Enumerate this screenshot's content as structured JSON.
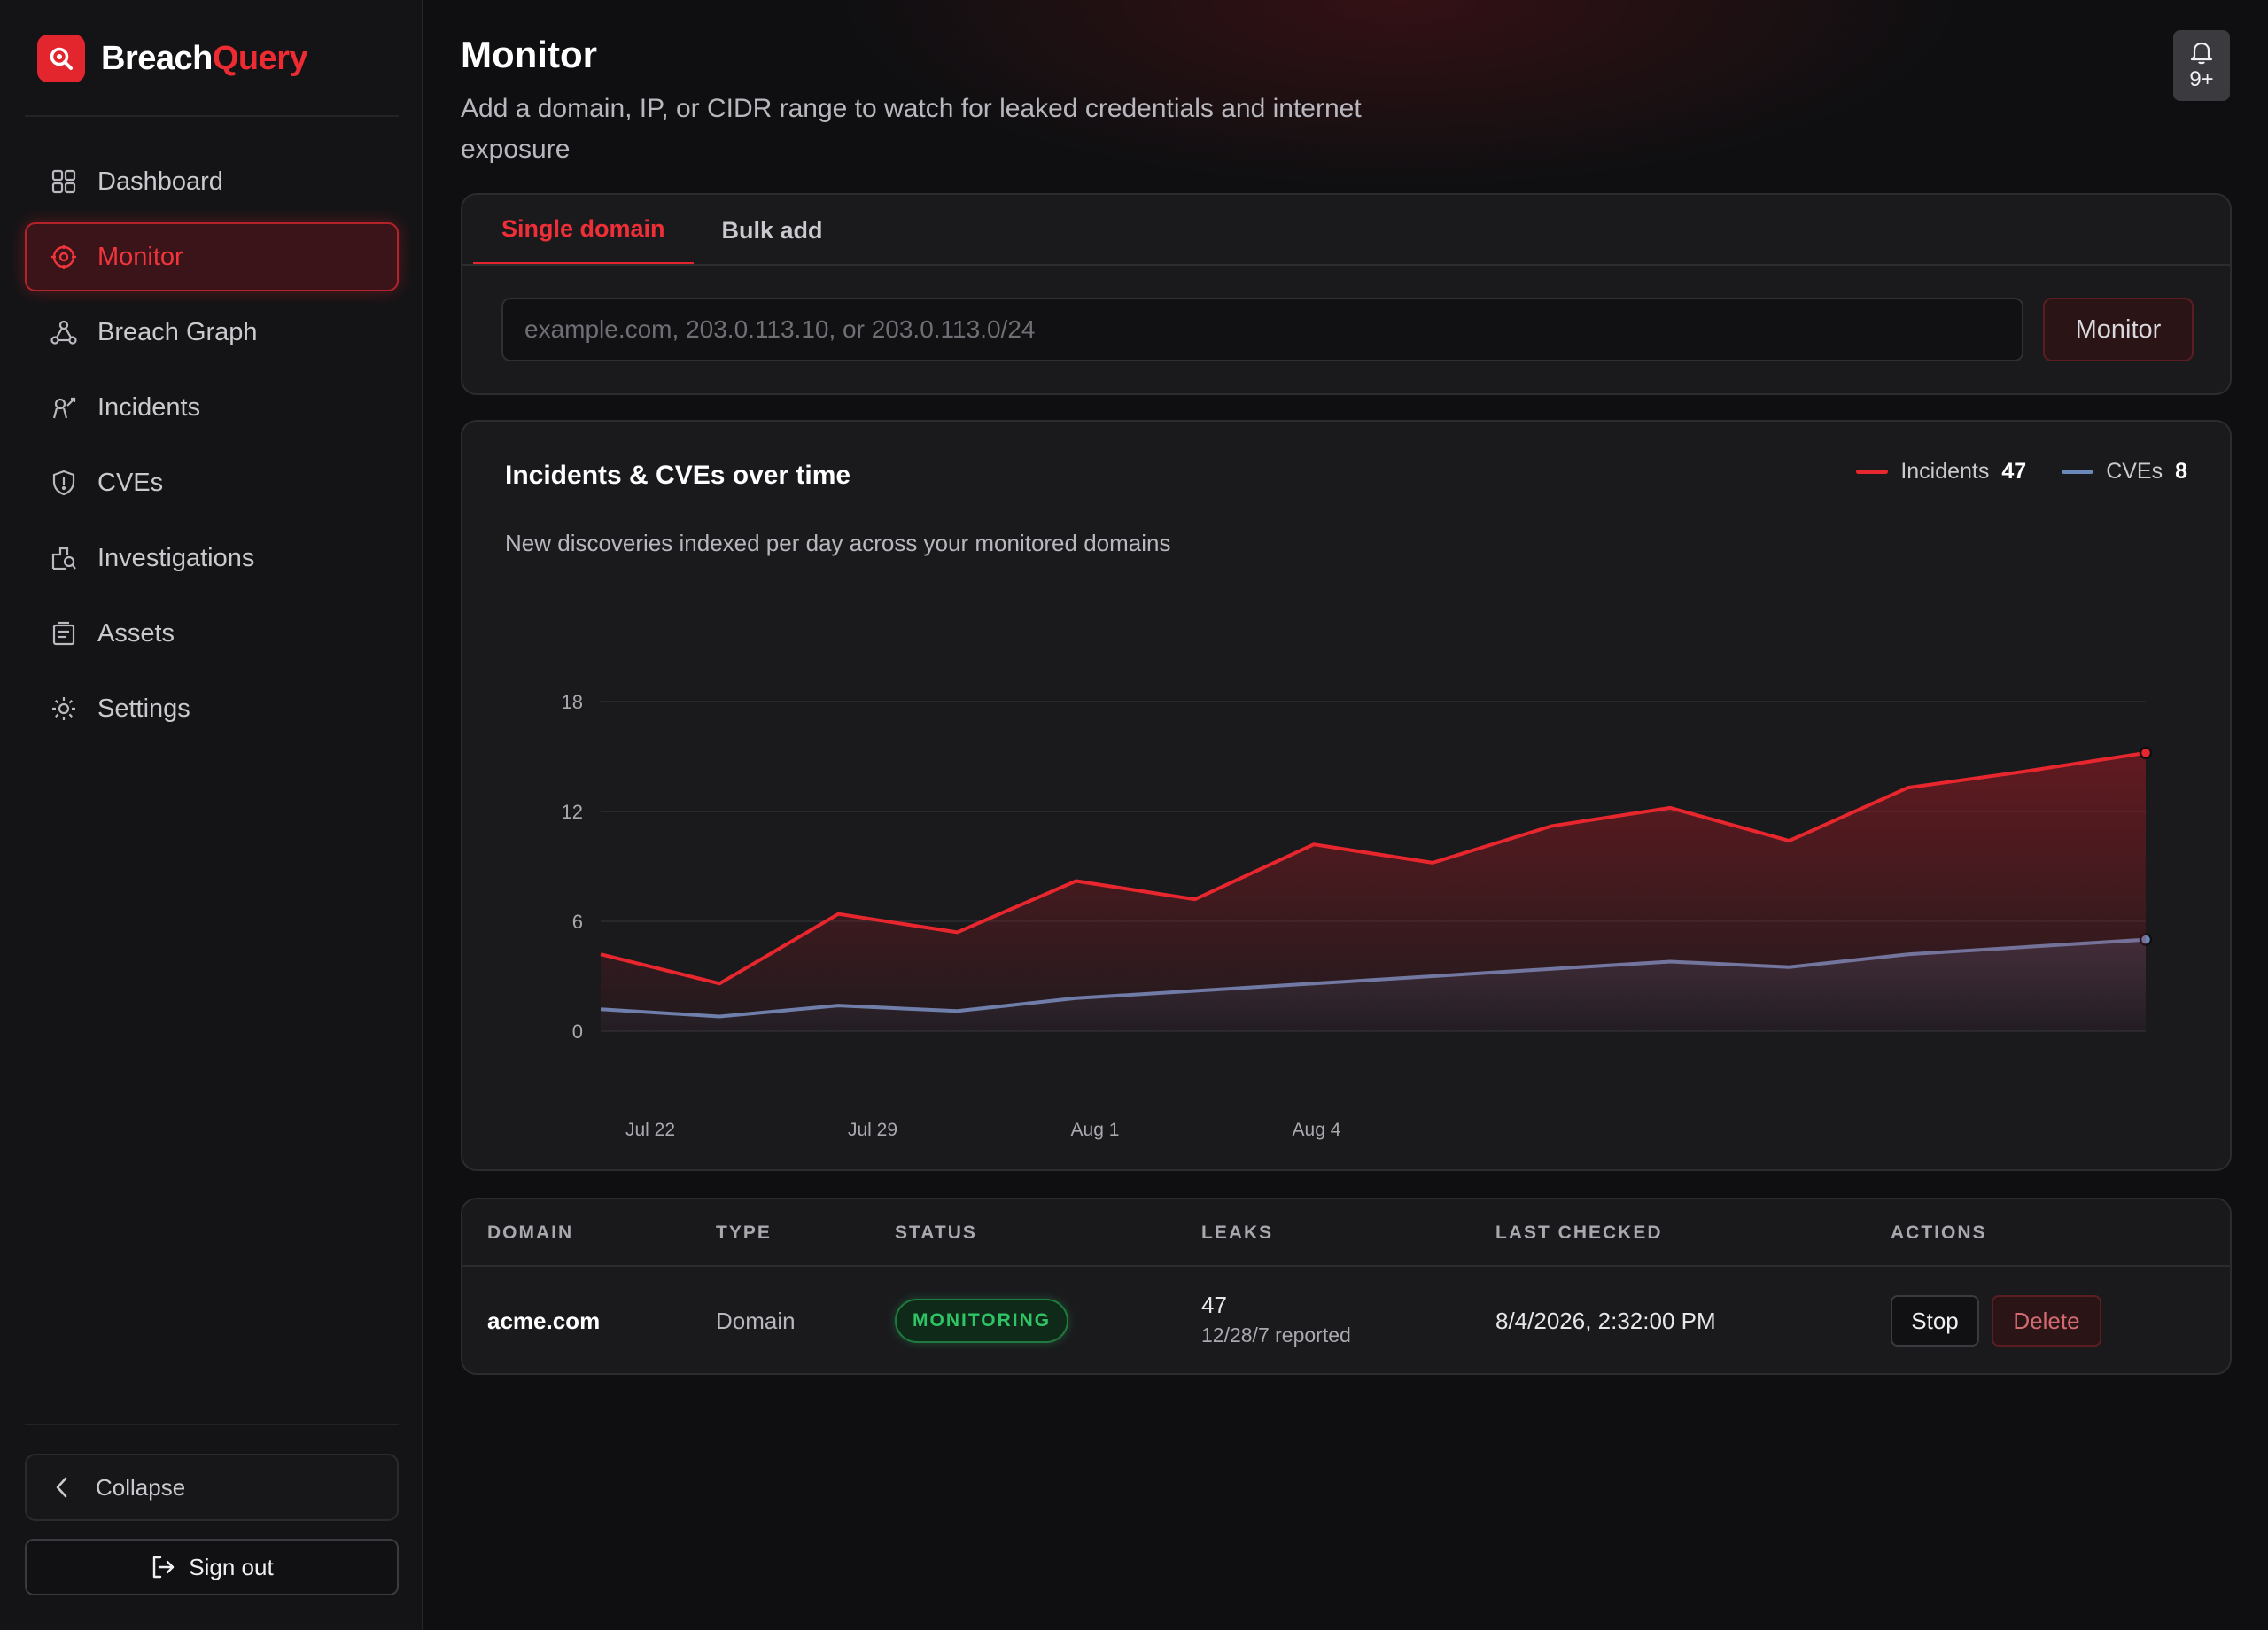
{
  "brand": {
    "part1": "Breach",
    "part2": "Query",
    "accent": "#e3262d"
  },
  "sidebar": {
    "items": [
      {
        "label": "Dashboard",
        "icon": "dashboard-icon",
        "active": false
      },
      {
        "label": "Monitor",
        "icon": "target-icon",
        "active": true
      },
      {
        "label": "Breach Graph",
        "icon": "graph-icon",
        "active": false
      },
      {
        "label": "Incidents",
        "icon": "incidents-icon",
        "active": false
      },
      {
        "label": "CVEs",
        "icon": "shield-icon",
        "active": false
      },
      {
        "label": "Investigations",
        "icon": "investigations-icon",
        "active": false
      },
      {
        "label": "Assets",
        "icon": "assets-icon",
        "active": false
      },
      {
        "label": "Settings",
        "icon": "settings-icon",
        "active": false
      }
    ],
    "collapse_label": "Collapse",
    "signout_label": "Sign out"
  },
  "header": {
    "title": "Monitor",
    "subtitle": "Add a domain, IP, or CIDR range to watch for leaked credentials and internet exposure",
    "notifications_count": "9+"
  },
  "add_form": {
    "tabs": [
      {
        "label": "Single domain",
        "active": true
      },
      {
        "label": "Bulk add",
        "active": false
      }
    ],
    "input_placeholder": "example.com, 203.0.113.10, or 203.0.113.0/24",
    "input_value": "",
    "submit_label": "Monitor"
  },
  "chart_data": {
    "type": "area",
    "title": "Incidents & CVEs over time",
    "subtitle": "New discoveries indexed per day across your monitored domains",
    "x_tick_labels": [
      "Jul 22",
      "Jul 29",
      "Aug 1",
      "Aug 4"
    ],
    "ylim": [
      0,
      18
    ],
    "y_ticks": [
      0,
      6,
      12,
      18
    ],
    "grid": true,
    "legend_position": "top-right",
    "series": [
      {
        "name": "Incidents",
        "total": 47,
        "color": "#e8262e",
        "values": [
          4.2,
          2.6,
          6.4,
          5.4,
          8.2,
          7.2,
          10.2,
          9.2,
          11.2,
          12.2,
          10.4,
          13.3,
          14.2,
          15.2
        ]
      },
      {
        "name": "CVEs",
        "total": 8,
        "color": "#6b88b8",
        "values": [
          1.2,
          0.8,
          1.4,
          1.1,
          1.8,
          2.2,
          2.6,
          3.0,
          3.4,
          3.8,
          3.5,
          4.2,
          4.6,
          5.0
        ]
      }
    ]
  },
  "table": {
    "columns": [
      "DOMAIN",
      "TYPE",
      "STATUS",
      "LEAKS",
      "LAST CHECKED",
      "ACTIONS"
    ],
    "rows": [
      {
        "domain": "acme.com",
        "type": "Domain",
        "status": "MONITORING",
        "leaks": "47",
        "leaks_detail": "12/28/7 reported",
        "last_checked": "8/4/2026, 2:32:00 PM",
        "action_stop": "Stop",
        "action_delete": "Delete"
      }
    ]
  }
}
